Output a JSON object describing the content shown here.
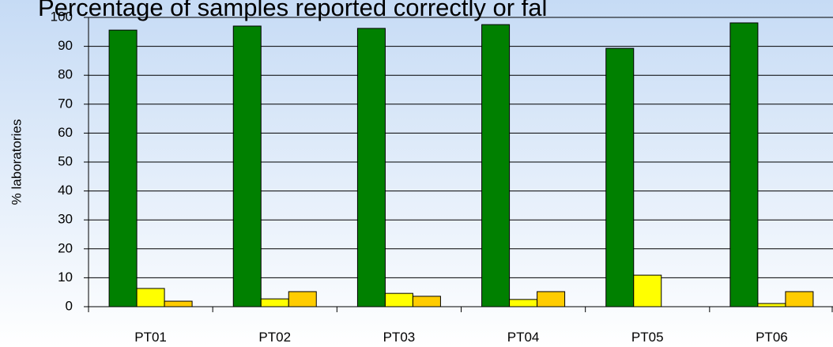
{
  "chart_data": {
    "type": "bar",
    "title": "Percentage of samples reported correctly or fal",
    "y_label": "% laboratories",
    "categories": [
      "PT01",
      "PT02",
      "PT03",
      "PT04",
      "PT05",
      "PT06"
    ],
    "series": [
      {
        "color": "#008000",
        "values": [
          95.6,
          97,
          96.2,
          97.5,
          89.3,
          98.1
        ]
      },
      {
        "color": "#ffff00",
        "values": [
          6.3,
          2.7,
          4.6,
          2.5,
          10.9,
          1.1
        ]
      },
      {
        "color": "#ffcc00",
        "values": [
          1.9,
          5.2,
          3.6,
          5.2,
          0,
          5.2
        ]
      }
    ],
    "ylim": [
      0,
      100
    ],
    "yticks": [
      0,
      10,
      20,
      30,
      40,
      50,
      60,
      70,
      80,
      90,
      100
    ],
    "grid": true
  }
}
